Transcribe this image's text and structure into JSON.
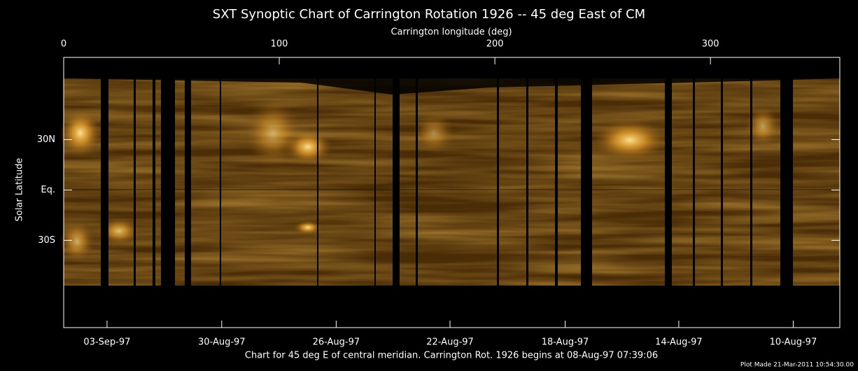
{
  "chart_data": {
    "type": "image",
    "title": "SXT Synoptic Chart of Carrington Rotation 1926 -- 45 deg East of CM",
    "xlabel": "Carrington longitude (deg)",
    "ylabel": "Solar Latitude",
    "xlim": [
      0,
      360
    ],
    "xticks": [
      0,
      100,
      200,
      300
    ],
    "ylim": [
      -82,
      79
    ],
    "yticks": [
      {
        "value": 30,
        "label": "30N"
      },
      {
        "value": 0,
        "label": "Eq."
      },
      {
        "value": -30,
        "label": "30S"
      }
    ],
    "x2ticks": [
      {
        "value": 20.1,
        "label": "03-Sep-97"
      },
      {
        "value": 73.3,
        "label": "30-Aug-97"
      },
      {
        "value": 126.4,
        "label": "26-Aug-97"
      },
      {
        "value": 179.2,
        "label": "22-Aug-97"
      },
      {
        "value": 232.6,
        "label": "18-Aug-97"
      },
      {
        "value": 285.3,
        "label": "14-Aug-97"
      },
      {
        "value": 338.4,
        "label": "10-Aug-97"
      }
    ],
    "caption": "Chart for 45 deg E of central meridian.  Carrington Rot. 1926 begins at 08-Aug-97 07:39:06",
    "footnote": "Plot Made 21-Mar-2011 10:54:30.00"
  }
}
